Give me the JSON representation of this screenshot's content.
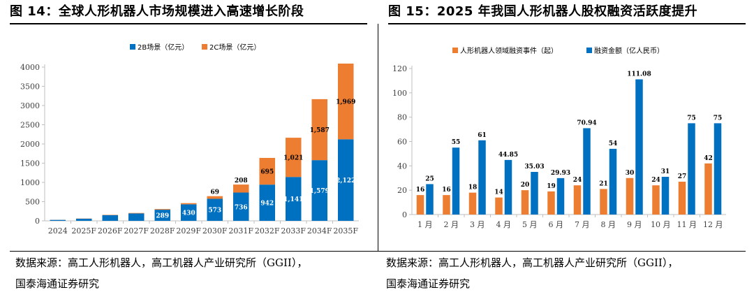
{
  "left_panel": {
    "title": "图 14：全球人形机器人市场规模进入高速增长阶段",
    "source": [
      "数据来源：高工人形机器人，高工机器人产业研究所（GGII），",
      "国泰海通证券研究"
    ]
  },
  "right_panel": {
    "title": "图 15：2025 年我国人形机器人股权融资活跃度提升",
    "source": [
      "数据来源：高工人形机器人，高工机器人产业研究所（GGII），",
      "国泰海通证券研究"
    ]
  },
  "colors": {
    "blue": "#0070C0",
    "orange": "#ED7D31",
    "axis": "#bfbfbf",
    "grid": "#d9d9d9"
  },
  "chart_data": [
    {
      "type": "bar",
      "stacked": true,
      "categories": [
        "2024",
        "2025F",
        "2026F",
        "2027F",
        "2028F",
        "2029F",
        "2030F",
        "2031F",
        "2032F",
        "2033F",
        "2034F",
        "2035F"
      ],
      "series": [
        {
          "name": "2B场景（亿元）",
          "color": "#0070C0",
          "values": [
            25,
            55,
            149,
            193,
            289,
            430,
            573,
            736,
            942,
            1141,
            1579,
            2122
          ],
          "labels": [
            "",
            "",
            "149",
            "193",
            "289",
            "430",
            "573",
            "736",
            "942",
            "1,141",
            "1,579",
            "2,122"
          ]
        },
        {
          "name": "2C场景（亿元）",
          "color": "#ED7D31",
          "values": [
            2,
            5,
            8,
            12,
            18,
            30,
            69,
            208,
            695,
            1021,
            1587,
            1969
          ],
          "labels": [
            "",
            "",
            "",
            "",
            "",
            "",
            "69",
            "208",
            "695",
            "1,021",
            "1,587",
            "1,969"
          ]
        }
      ],
      "ylim": [
        0,
        4000
      ],
      "yticks": [
        0,
        500,
        1000,
        1500,
        2000,
        2500,
        3000,
        3500,
        4000
      ],
      "grid": false,
      "legend": "top"
    },
    {
      "type": "bar",
      "stacked": false,
      "categories": [
        "1 月",
        "2 月",
        "3 月",
        "4 月",
        "5 月",
        "6 月",
        "7 月",
        "8 月",
        "9 月",
        "10 月",
        "11 月",
        "12 月"
      ],
      "series": [
        {
          "name": "人形机器人领域融资事件（起）",
          "color": "#ED7D31",
          "values": [
            16,
            16,
            18,
            14,
            20,
            19,
            24,
            21,
            30,
            24,
            27,
            42
          ],
          "labels": [
            "16",
            "16",
            "18",
            "14",
            "20",
            "19",
            "24",
            "21",
            "30",
            "24",
            "27",
            "42"
          ]
        },
        {
          "name": "融资金额（亿人民币）",
          "color": "#0070C0",
          "values": [
            25,
            55,
            61,
            44.85,
            35.03,
            29.93,
            70.94,
            54,
            111.08,
            31,
            75,
            75
          ],
          "labels": [
            "25",
            "55",
            "61",
            "44.85",
            "35.03",
            "29.93",
            "70.94",
            "54",
            "111.08",
            "31",
            "75",
            "75"
          ]
        }
      ],
      "ylim": [
        0,
        120
      ],
      "yticks": [
        0,
        20,
        40,
        60,
        80,
        100,
        120
      ],
      "grid": false,
      "legend": "top"
    }
  ]
}
